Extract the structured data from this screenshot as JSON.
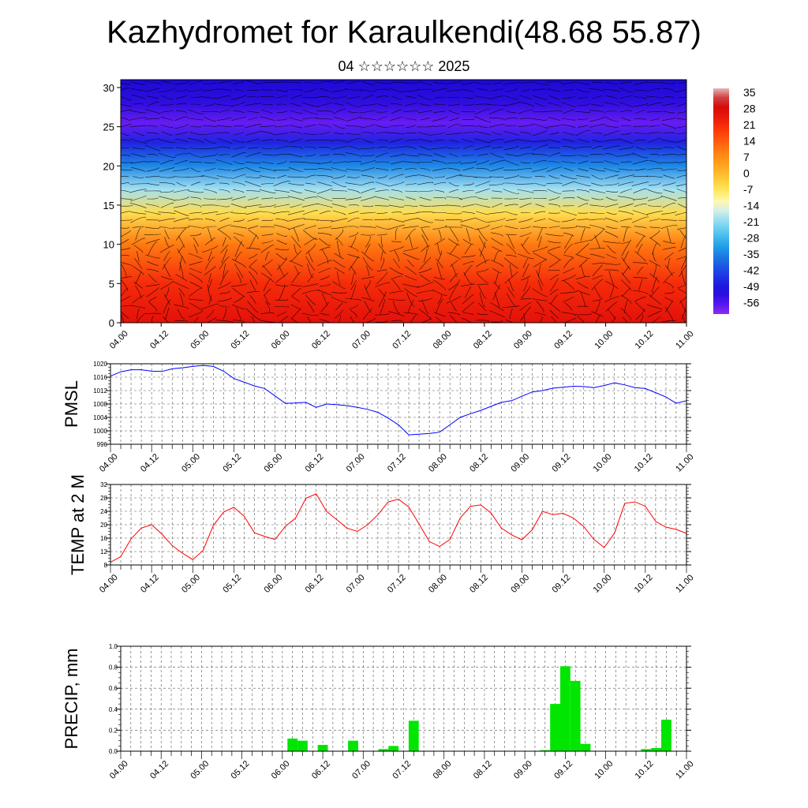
{
  "header": {
    "title": "Kazhydromet for Karaulkendi(48.68 55.87)",
    "subtitle": "04 ☆☆☆☆☆☆ 2025"
  },
  "time_labels": [
    "04.00",
    "04.12",
    "05.00",
    "05.12",
    "06.00",
    "06.12",
    "07.00",
    "07.12",
    "08.00",
    "08.12",
    "09.00",
    "09.12",
    "10.00",
    "10.12",
    "11.00"
  ],
  "colors": {
    "pmsl": "#0000ff",
    "temp": "#ff0000",
    "precip": "#00e600",
    "frame": "#000000"
  },
  "chart_data": [
    {
      "type": "heatmap",
      "name": "cross-section",
      "x_tick_labels": [
        "04.00",
        "04.12",
        "05.00",
        "05.12",
        "06.00",
        "06.12",
        "07.00",
        "07.12",
        "08.00",
        "08.12",
        "09.00",
        "09.12",
        "10.00",
        "10.12",
        "11.00"
      ],
      "y_tick_labels": [
        "0",
        "5",
        "10",
        "15",
        "20",
        "25",
        "30"
      ],
      "ylim": [
        0,
        31
      ],
      "colorbar_labels": [
        "35",
        "28",
        "21",
        "14",
        "7",
        "0",
        "-7",
        "-14",
        "-21",
        "-28",
        "-35",
        "-42",
        "-49",
        "-56"
      ],
      "colorbar_range": [
        -60,
        39
      ],
      "levels_temperature": [
        {
          "height": 0,
          "value": 28
        },
        {
          "height": 5,
          "value": 23
        },
        {
          "height": 10,
          "value": 12
        },
        {
          "height": 14,
          "value": -4
        },
        {
          "height": 17,
          "value": -18
        },
        {
          "height": 20,
          "value": -33
        },
        {
          "height": 23,
          "value": -46
        },
        {
          "height": 25.5,
          "value": -57
        },
        {
          "height": 28,
          "value": -52
        },
        {
          "height": 31,
          "value": -50
        }
      ],
      "wind_vectors": "dense black streamline field"
    },
    {
      "type": "line",
      "ylabel": "PMSL",
      "yticks": [
        996,
        1000,
        1004,
        1008,
        1012,
        1016,
        1020
      ],
      "ylim": [
        996,
        1020
      ],
      "x_tick_labels": [
        "04.00",
        "04.12",
        "05.00",
        "05.12",
        "06.00",
        "06.12",
        "07.00",
        "07.12",
        "08.00",
        "08.12",
        "09.00",
        "09.12",
        "10.00",
        "10.12",
        "11.00"
      ],
      "series": [
        {
          "values": [
            1016.3,
            1017.6,
            1018.2,
            1018.2,
            1017.8,
            1017.7,
            1018.5,
            1018.8,
            1019.2,
            1019.5,
            1019.2,
            1017.8,
            1015.6,
            1014.5,
            1013.4,
            1012.6,
            1010.4,
            1008.2,
            1008.3,
            1008.5,
            1007,
            1008,
            1007.8,
            1007.5,
            1007,
            1006.4,
            1005.5,
            1003.8,
            1001.8,
            998.8,
            999,
            999.2,
            999.6,
            1001.8,
            1004,
            1005.1,
            1006.1,
            1007.3,
            1008.5,
            1009,
            1010.3,
            1011.6,
            1012,
            1012.7,
            1013,
            1013.3,
            1013.2,
            1012.9,
            1013.5,
            1014.3,
            1013.7,
            1012.9,
            1012.6,
            1011.4,
            1010.1,
            1008.2,
            1009
          ]
        }
      ]
    },
    {
      "type": "line",
      "ylabel": "TEMP at 2 M",
      "yticks": [
        8,
        12,
        16,
        20,
        24,
        28,
        32
      ],
      "ylim": [
        8,
        32
      ],
      "x_tick_labels": [
        "04.00",
        "04.12",
        "05.00",
        "05.12",
        "06.00",
        "06.12",
        "07.00",
        "07.12",
        "08.00",
        "08.12",
        "09.00",
        "09.12",
        "10.00",
        "10.12",
        "11.00"
      ],
      "series": [
        {
          "values": [
            8.8,
            10.5,
            15.8,
            19,
            20,
            17.2,
            13.8,
            11.5,
            9.6,
            12.3,
            19.8,
            23.8,
            25.2,
            22.5,
            17.6,
            16.5,
            15.6,
            19.5,
            22,
            27.9,
            29.2,
            24,
            21.5,
            19,
            18,
            20,
            23,
            26.8,
            27.6,
            25.3,
            20.2,
            15,
            13.5,
            15.6,
            22,
            25.5,
            25.9,
            23.5,
            19,
            17,
            15.5,
            18.5,
            24,
            23,
            23.4,
            22,
            19.5,
            15.6,
            13.2,
            17.5,
            26.4,
            26.8,
            25.5,
            21,
            19.3,
            18.6,
            17.4
          ]
        }
      ]
    },
    {
      "type": "bar",
      "ylabel": "PRECIP, mm",
      "yticks": [
        0.0,
        0.2,
        0.4,
        0.6,
        0.8,
        1.0
      ],
      "ylim": [
        0,
        1
      ],
      "x_tick_labels": [
        "04.00",
        "04.12",
        "05.00",
        "05.12",
        "06.00",
        "06.12",
        "07.00",
        "07.12",
        "08.00",
        "08.12",
        "09.00",
        "09.12",
        "10.00",
        "10.12",
        "11.00"
      ],
      "values": [
        0,
        0,
        0,
        0,
        0,
        0,
        0,
        0,
        0,
        0,
        0,
        0,
        0,
        0,
        0,
        0,
        0,
        0.12,
        0.1,
        0,
        0.06,
        0,
        0,
        0.1,
        0,
        0,
        0.02,
        0.05,
        0,
        0.29,
        0,
        0,
        0,
        0,
        0,
        0,
        0,
        0,
        0,
        0,
        0,
        0,
        0.01,
        0.45,
        0.81,
        0.67,
        0.07,
        0,
        0,
        0,
        0,
        0,
        0.02,
        0.03,
        0.3,
        0,
        0
      ]
    }
  ]
}
